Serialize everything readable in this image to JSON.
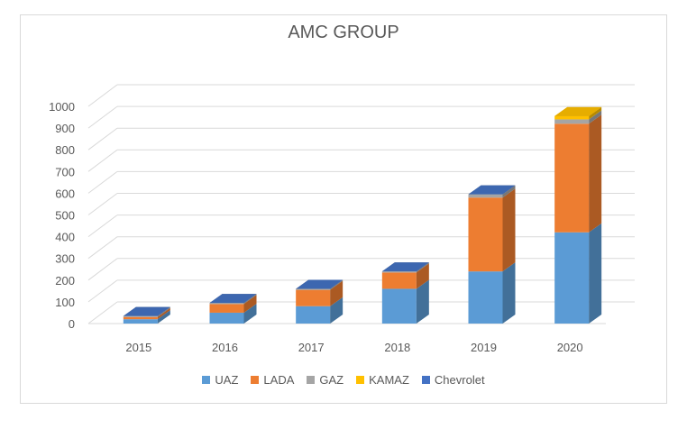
{
  "chart_data": {
    "type": "bar",
    "stacked": true,
    "style": "3d-column",
    "title": "AMC GROUP",
    "categories": [
      "2015",
      "2016",
      "2017",
      "2018",
      "2019",
      "2020"
    ],
    "series": [
      {
        "name": "UAZ",
        "color": "#5b9bd5",
        "values": [
          20,
          50,
          80,
          160,
          240,
          420
        ]
      },
      {
        "name": "LADA",
        "color": "#ed7d31",
        "values": [
          10,
          40,
          75,
          75,
          340,
          500
        ]
      },
      {
        "name": "GAZ",
        "color": "#a5a5a5",
        "values": [
          5,
          5,
          5,
          5,
          15,
          20
        ]
      },
      {
        "name": "KAMAZ",
        "color": "#ffc000",
        "values": [
          0,
          0,
          0,
          0,
          0,
          15
        ]
      },
      {
        "name": "Chevrolet",
        "color": "#4472c4",
        "values": [
          0,
          0,
          0,
          0,
          0,
          0
        ]
      }
    ],
    "yticks": [
      "0",
      "100",
      "200",
      "300",
      "400",
      "500",
      "600",
      "700",
      "800",
      "900",
      "1000"
    ],
    "ylim": [
      0,
      1000
    ],
    "grid": true,
    "legend": "bottom"
  }
}
